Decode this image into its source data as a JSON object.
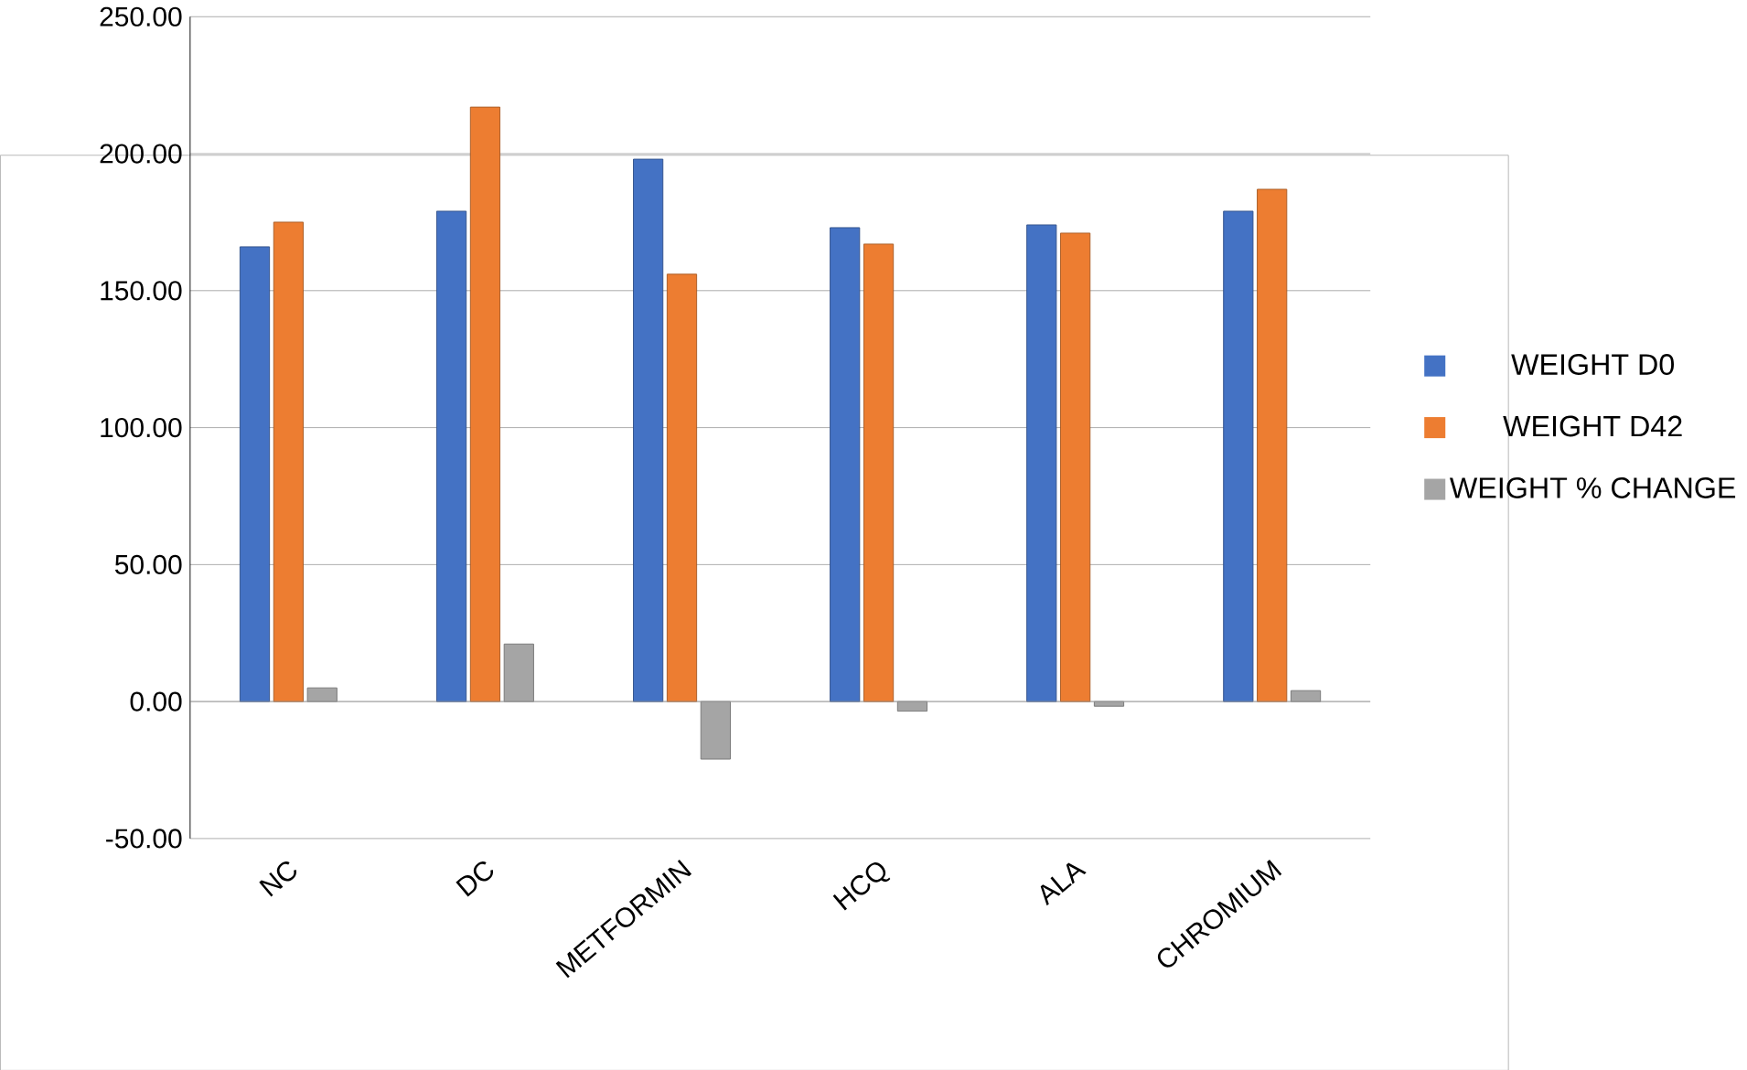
{
  "chart_data": {
    "type": "bar",
    "categories": [
      "NC",
      "DC",
      "METFORMIN",
      "HCQ",
      "ALA",
      "CHROMIUM"
    ],
    "series": [
      {
        "name": "WEIGHT D0",
        "color": "#4472c4",
        "values": [
          166,
          179,
          198,
          173,
          174,
          179
        ]
      },
      {
        "name": "WEIGHT D42",
        "color": "#ed7d31",
        "values": [
          175,
          217,
          156,
          167,
          171,
          187
        ]
      },
      {
        "name": "WEIGHT % CHANGE",
        "color": "#a5a5a5",
        "values": [
          5,
          21,
          -21,
          -3.5,
          -1.7,
          4
        ]
      }
    ],
    "ylim": [
      -50,
      250
    ],
    "yticks": [
      {
        "value": -50,
        "label": "-50.00"
      },
      {
        "value": 0,
        "label": "0.00"
      },
      {
        "value": 50,
        "label": "50.00"
      },
      {
        "value": 100,
        "label": "100.00"
      },
      {
        "value": 150,
        "label": "150.00"
      },
      {
        "value": 200,
        "label": "200.00"
      },
      {
        "value": 250,
        "label": "250.00"
      }
    ],
    "grid": "y",
    "legend": "right"
  }
}
